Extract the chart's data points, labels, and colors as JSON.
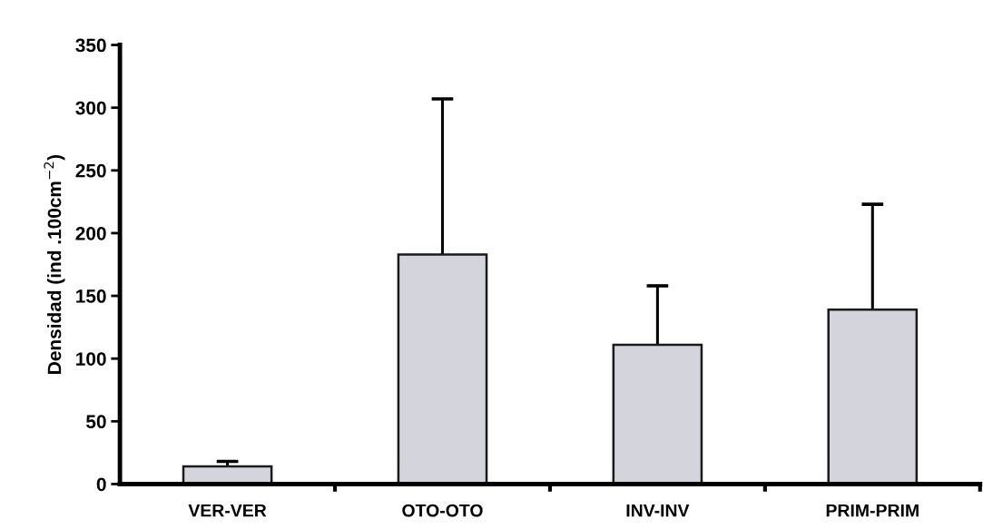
{
  "chart_data": {
    "type": "bar",
    "ylabel": "Densidad (ind .100cm$^{−2}$)",
    "categories": [
      "VER-VER",
      "OTO-OTO",
      "INV-INV",
      "PRIM-PRIM"
    ],
    "values": [
      14,
      183,
      111,
      139
    ],
    "errors": [
      [
        14,
        18
      ],
      [
        183,
        307
      ],
      [
        111,
        158
      ],
      [
        139,
        223
      ]
    ],
    "color": "#d4d4dc",
    "ylim": [
      0,
      350
    ],
    "yticks": [
      0,
      50,
      100,
      150,
      200,
      250,
      300,
      350
    ],
    "grid": false,
    "legend": false
  }
}
